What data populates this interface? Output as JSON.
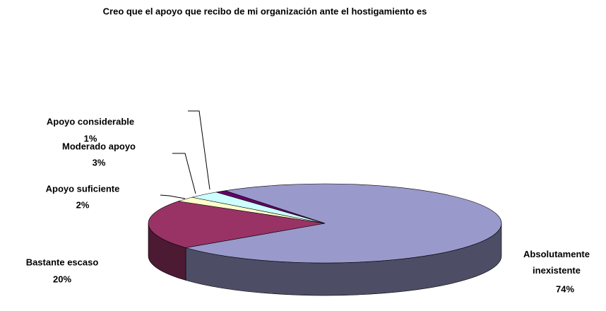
{
  "chart_data": {
    "type": "pie3d",
    "title": "Creo que el apoyo que recibo de mi organización ante el hostigamiento es",
    "categories": [
      "Absolutamente inexistente",
      "Bastante escaso",
      "Apoyo suficiente",
      "Moderado apoyo",
      "Apoyo considerable"
    ],
    "values": [
      74,
      20,
      2,
      3,
      1
    ],
    "value_labels": [
      "74%",
      "20%",
      "2%",
      "3%",
      "1%"
    ],
    "colors": [
      "#9999cc",
      "#993366",
      "#ffffcc",
      "#ccffff",
      "#660066"
    ]
  }
}
